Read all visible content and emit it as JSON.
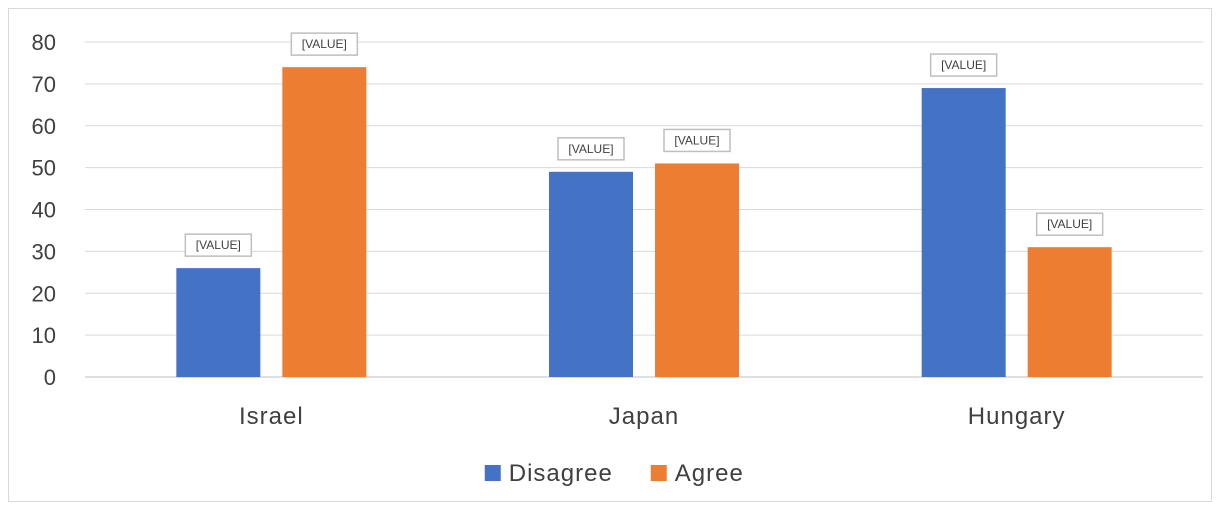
{
  "chart_data": {
    "type": "bar",
    "categories": [
      "Israel",
      "Japan",
      "Hungary"
    ],
    "series": [
      {
        "name": "Disagree",
        "values": [
          26,
          49,
          69
        ],
        "color": "#4472c4"
      },
      {
        "name": "Agree",
        "values": [
          74,
          51,
          31
        ],
        "color": "#ed7d31"
      }
    ],
    "data_label_text": "[VALUE]",
    "ylim": [
      0,
      80
    ],
    "yticks": [
      0,
      10,
      20,
      30,
      40,
      50,
      60,
      70,
      80
    ],
    "grid": true,
    "legend": "bottom",
    "title": "",
    "xlabel": "",
    "ylabel": ""
  }
}
